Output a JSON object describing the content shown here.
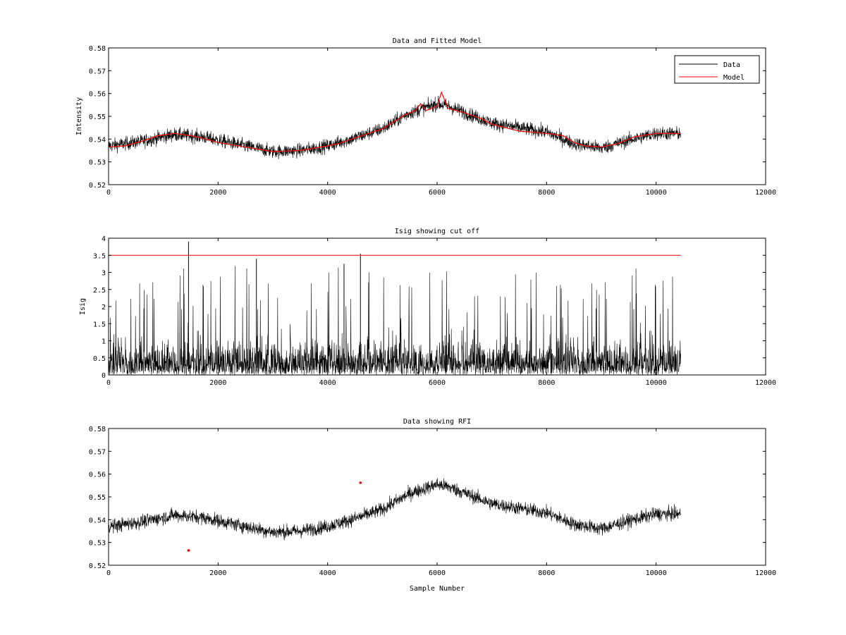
{
  "figure": {
    "colors": {
      "data": "#000000",
      "model": "#ff0000",
      "axes": "#000000",
      "background": "#ffffff"
    }
  },
  "chart_data": [
    {
      "type": "line",
      "title": "Data and Fitted Model",
      "xlabel": "",
      "ylabel": "Intensity",
      "xlim": [
        0,
        12000
      ],
      "ylim": [
        0.52,
        0.58
      ],
      "xticks": [
        "0",
        "2000",
        "4000",
        "6000",
        "8000",
        "10000",
        "12000"
      ],
      "yticks": [
        "0.52",
        "0.53",
        "0.54",
        "0.55",
        "0.56",
        "0.57",
        "0.58"
      ],
      "grid": false,
      "legend": {
        "position": "top-right",
        "entries": [
          "Data",
          "Model"
        ]
      },
      "series": [
        {
          "name": "Data",
          "kind": "noisy-line",
          "x_start": 0,
          "x_end": 10450,
          "noise_amplitude": 0.0065,
          "trend": [
            [
              0,
              0.537
            ],
            [
              600,
              0.539
            ],
            [
              1200,
              0.542
            ],
            [
              1700,
              0.541
            ],
            [
              2200,
              0.5385
            ],
            [
              3000,
              0.5345
            ],
            [
              3500,
              0.535
            ],
            [
              4000,
              0.537
            ],
            [
              4500,
              0.5405
            ],
            [
              5000,
              0.5445
            ],
            [
              5500,
              0.5515
            ],
            [
              6000,
              0.5555
            ],
            [
              6200,
              0.5545
            ],
            [
              7000,
              0.547
            ],
            [
              8000,
              0.543
            ],
            [
              8500,
              0.538
            ],
            [
              9000,
              0.536
            ],
            [
              9500,
              0.5395
            ],
            [
              10000,
              0.5425
            ],
            [
              10450,
              0.5425
            ]
          ]
        },
        {
          "name": "Model",
          "kind": "line",
          "points": [
            [
              0,
              0.5365
            ],
            [
              300,
              0.537
            ],
            [
              600,
              0.539
            ],
            [
              900,
              0.5415
            ],
            [
              1200,
              0.5425
            ],
            [
              1500,
              0.5415
            ],
            [
              1700,
              0.5405
            ],
            [
              2000,
              0.5385
            ],
            [
              2500,
              0.5365
            ],
            [
              3000,
              0.5345
            ],
            [
              3500,
              0.535
            ],
            [
              4000,
              0.537
            ],
            [
              4200,
              0.538
            ],
            [
              4500,
              0.5405
            ],
            [
              5000,
              0.5445
            ],
            [
              5400,
              0.5505
            ],
            [
              5600,
              0.5525
            ],
            [
              5700,
              0.5555
            ],
            [
              5800,
              0.5525
            ],
            [
              6000,
              0.5545
            ],
            [
              6080,
              0.5605
            ],
            [
              6200,
              0.5535
            ],
            [
              6500,
              0.5515
            ],
            [
              6800,
              0.549
            ],
            [
              7000,
              0.5465
            ],
            [
              7500,
              0.5435
            ],
            [
              8000,
              0.5425
            ],
            [
              8300,
              0.5415
            ],
            [
              8500,
              0.5385
            ],
            [
              8700,
              0.537
            ],
            [
              9000,
              0.5365
            ],
            [
              9300,
              0.538
            ],
            [
              9600,
              0.541
            ],
            [
              10000,
              0.5425
            ],
            [
              10450,
              0.5425
            ]
          ]
        }
      ]
    },
    {
      "type": "line",
      "title": "Isig showing cut off",
      "xlabel": "",
      "ylabel": "Isig",
      "xlim": [
        0,
        12000
      ],
      "ylim": [
        0,
        4
      ],
      "xticks": [
        "0",
        "2000",
        "4000",
        "6000",
        "8000",
        "10000",
        "12000"
      ],
      "yticks": [
        "0",
        "0.5",
        "1",
        "1.5",
        "2",
        "2.5",
        "3",
        "3.5",
        "4"
      ],
      "grid": false,
      "series": [
        {
          "kind": "spiky-line",
          "x_start": 0,
          "x_end": 10450,
          "dense_max": 1.6,
          "spike_max": 3.2,
          "peaks": [
            [
              1460,
              3.9
            ],
            [
              4600,
              3.55
            ],
            [
              2700,
              3.4
            ],
            [
              4300,
              3.25
            ]
          ]
        },
        {
          "kind": "cutoff-line",
          "y": 3.5,
          "x_start": 0,
          "x_end": 10450
        }
      ]
    },
    {
      "type": "line",
      "title": "Data showing RFI",
      "xlabel": "Sample Number",
      "ylabel": "",
      "xlim": [
        0,
        12000
      ],
      "ylim": [
        0.52,
        0.58
      ],
      "xticks": [
        "0",
        "2000",
        "4000",
        "6000",
        "8000",
        "10000",
        "12000"
      ],
      "yticks": [
        "0.52",
        "0.53",
        "0.54",
        "0.55",
        "0.56",
        "0.57",
        "0.58"
      ],
      "grid": false,
      "series": [
        {
          "kind": "noisy-line",
          "x_start": 0,
          "x_end": 10450,
          "noise_amplitude": 0.0065,
          "trend": [
            [
              0,
              0.537
            ],
            [
              600,
              0.539
            ],
            [
              1200,
              0.542
            ],
            [
              1700,
              0.541
            ],
            [
              2200,
              0.5385
            ],
            [
              3000,
              0.5345
            ],
            [
              3500,
              0.535
            ],
            [
              4000,
              0.537
            ],
            [
              4500,
              0.5405
            ],
            [
              5000,
              0.5445
            ],
            [
              5500,
              0.5515
            ],
            [
              6000,
              0.5555
            ],
            [
              6200,
              0.5545
            ],
            [
              7000,
              0.547
            ],
            [
              8000,
              0.543
            ],
            [
              8500,
              0.538
            ],
            [
              9000,
              0.536
            ],
            [
              9500,
              0.5395
            ],
            [
              10000,
              0.5425
            ],
            [
              10450,
              0.5425
            ]
          ]
        },
        {
          "kind": "markers",
          "points": [
            [
              1460,
              0.5265
            ],
            [
              4600,
              0.5562
            ]
          ]
        }
      ]
    }
  ]
}
